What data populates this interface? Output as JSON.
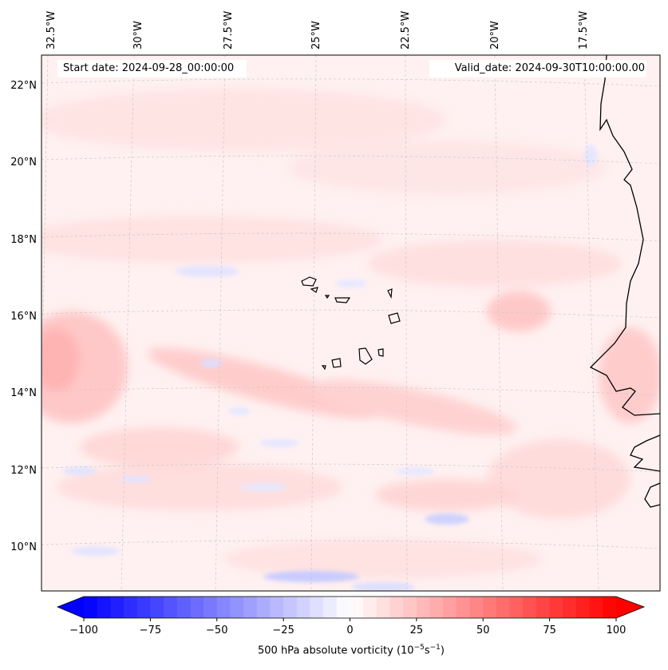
{
  "info": {
    "start_label": "Start date: 2024-09-28_00:00:00",
    "valid_label": "Valid_date: 2024-09-30T10:00:00.00"
  },
  "map": {
    "region": "Eastern tropical North Atlantic (Cape Verde, West African coast)",
    "projection": "conic",
    "lon_labels": [
      "32.5°W",
      "30°W",
      "27.5°W",
      "25°W",
      "22.5°W",
      "20°W",
      "17.5°W"
    ],
    "lat_labels": [
      "22°N",
      "20°N",
      "18°N",
      "16°N",
      "14°N",
      "12°N",
      "10°N"
    ],
    "field": "500 hPa absolute vorticity",
    "colormap": "bwr"
  },
  "colorbar": {
    "ticks": [
      "−100",
      "−75",
      "−50",
      "−25",
      "0",
      "25",
      "50",
      "75",
      "100"
    ],
    "min": -100,
    "max": 100,
    "label_text": "500 hPa absolute vorticity (10",
    "label_exp1": "−5",
    "label_mid": "s",
    "label_exp2": "−1",
    "label_close": ")",
    "color_min": "#0000ff",
    "color_mid": "#ffffff",
    "color_max": "#ff0000"
  }
}
